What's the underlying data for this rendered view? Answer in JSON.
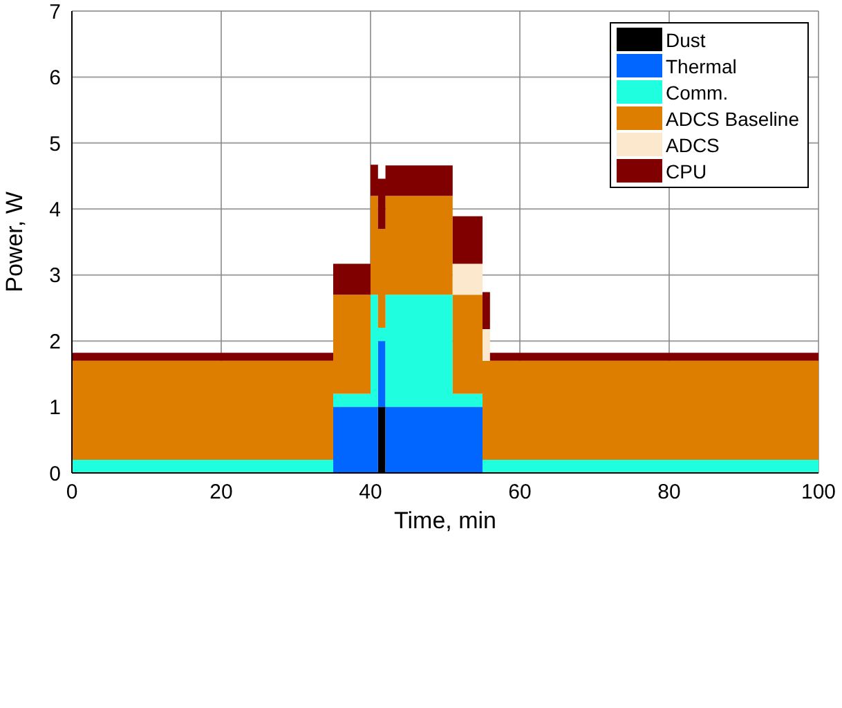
{
  "chart_data": {
    "type": "area",
    "stacked": true,
    "xlabel": "Time, min",
    "ylabel": "Power, W",
    "x": [
      0,
      35,
      40,
      41,
      42,
      51,
      55,
      56,
      100
    ],
    "series": [
      {
        "name": "Dust",
        "color": "#000000",
        "values": [
          0,
          0,
          0,
          1,
          0,
          0,
          0,
          0,
          0
        ]
      },
      {
        "name": "Thermal",
        "color": "#0066ff",
        "values": [
          0,
          1,
          1,
          1,
          1,
          1,
          0,
          0,
          0
        ]
      },
      {
        "name": "Comm.",
        "color": "#1fffdf",
        "values": [
          0.2,
          0.2,
          1.7,
          0.2,
          1.7,
          0.2,
          0.2,
          0.2,
          0.2
        ]
      },
      {
        "name": "ADCS Baseline",
        "color": "#de7e00",
        "values": [
          1.5,
          1.5,
          1.5,
          1.5,
          1.5,
          1.5,
          1.5,
          1.5,
          1.5
        ]
      },
      {
        "name": "ADCS",
        "color": "#fce8cc",
        "values": [
          0,
          0,
          0,
          0,
          0,
          0.47,
          0.48,
          0,
          0
        ]
      },
      {
        "name": "CPU",
        "color": "#800000",
        "values": [
          0.12,
          0.47,
          0.47,
          0.76,
          0.46,
          0.72,
          0.56,
          0.12,
          0.12
        ]
      }
    ],
    "xlim": [
      0,
      100
    ],
    "xticks": [
      0,
      20,
      40,
      60,
      80,
      100
    ],
    "ylim": [
      0,
      7
    ],
    "yticks": [
      0,
      1,
      2,
      3,
      4,
      5,
      6,
      7
    ],
    "grid": true,
    "legend": "top right"
  }
}
